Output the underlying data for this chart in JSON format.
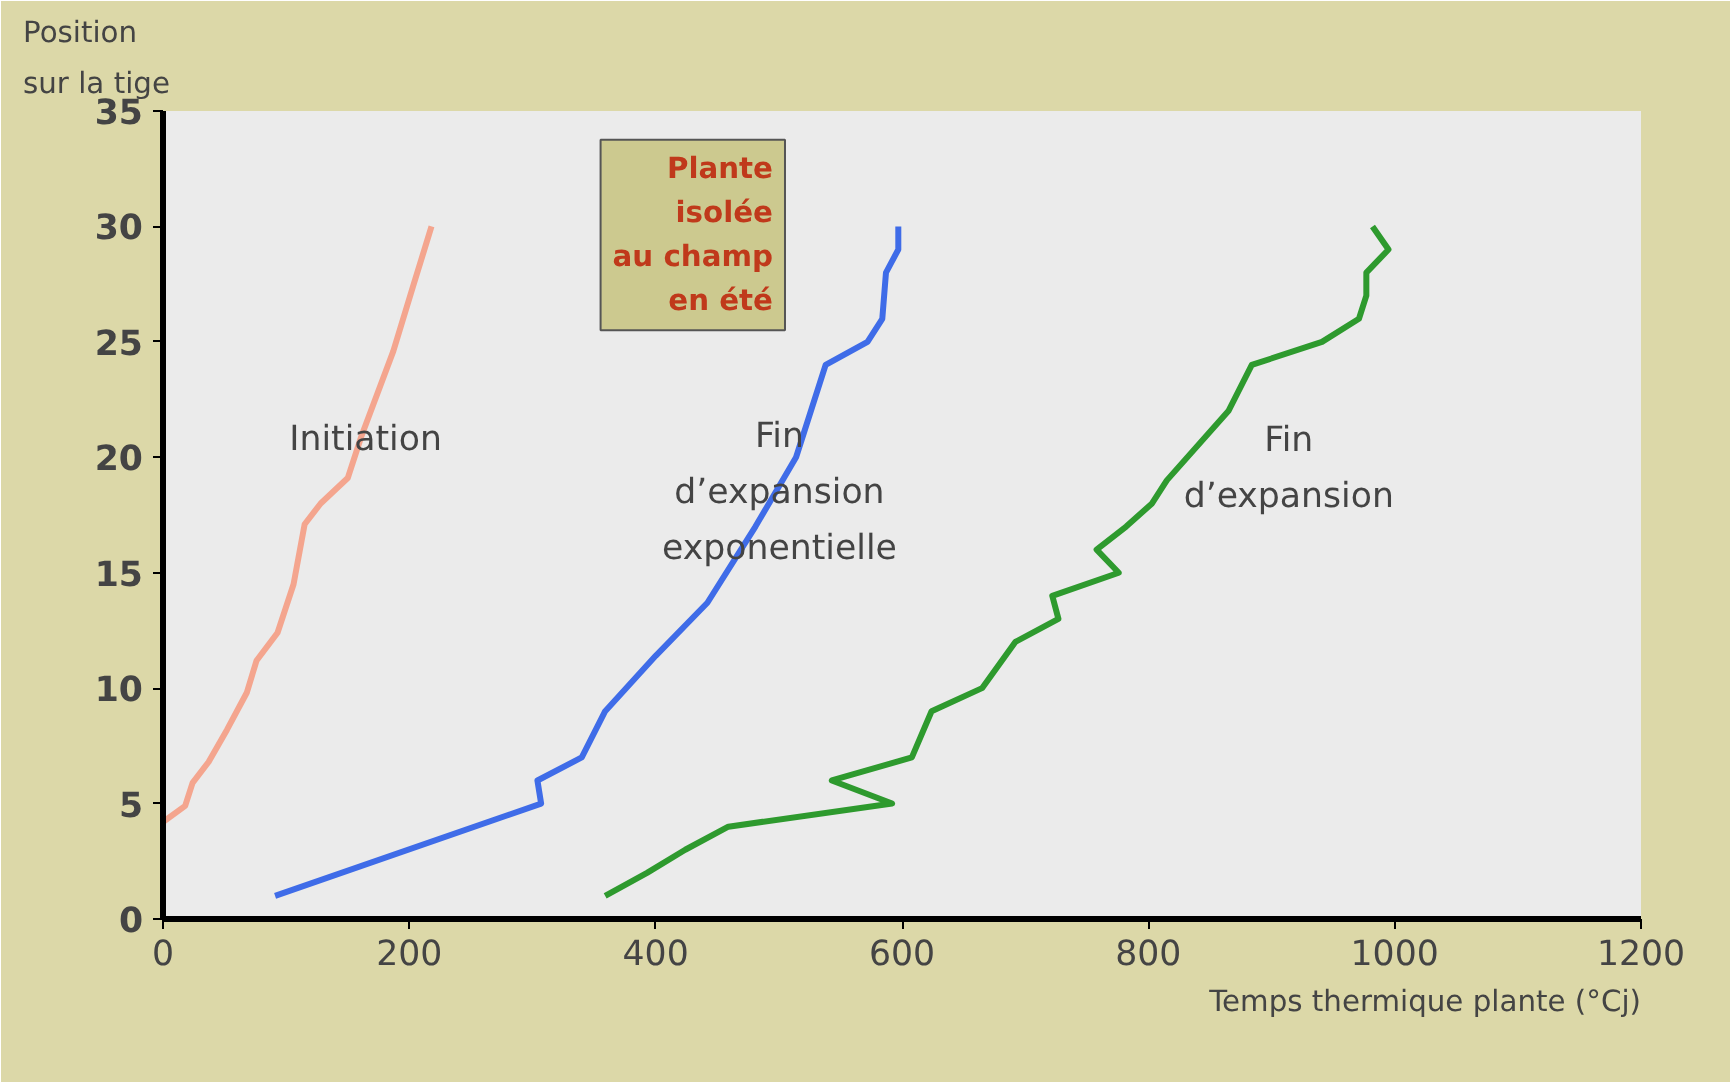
{
  "chart_data": {
    "type": "line",
    "xlabel": "Temps thermique plante (°Cj)",
    "ylabel": "Position\nsur la tige",
    "xlim": [
      0,
      1200
    ],
    "ylim": [
      0,
      35
    ],
    "xticks": [
      0,
      200,
      400,
      600,
      800,
      1000,
      1200
    ],
    "yticks": [
      0,
      5,
      10,
      15,
      20,
      25,
      30,
      35
    ],
    "grid": false,
    "marker": "none",
    "line_style": "solid",
    "annotations": [
      "Plante\nisolée\nau champ\nen été"
    ],
    "series": [
      {
        "name": "Initiation",
        "color": "#f4a58e",
        "x": [
          0,
          18,
          24,
          37,
          52,
          68,
          76,
          93,
          106,
          115,
          128,
          150,
          161,
          187,
          203,
          218
        ],
        "values": [
          4.2,
          4.9,
          5.9,
          6.8,
          8.2,
          9.8,
          11.2,
          12.4,
          14.5,
          17.1,
          18.0,
          19.1,
          20.9,
          24.6,
          27.4,
          30
        ]
      },
      {
        "name": "Fin\nd’expansion\nexponentielle",
        "color": "#3f6ce8",
        "x": [
          91,
          307,
          304,
          340,
          359,
          400,
          442,
          481,
          514,
          538,
          572,
          584,
          587,
          597,
          597
        ],
        "values": [
          1,
          5,
          6,
          7,
          9,
          11.4,
          13.7,
          17,
          20,
          24,
          25,
          26,
          28,
          29,
          30
        ]
      },
      {
        "name": "Fin\nd’expansion",
        "color": "#2e9a2e",
        "x": [
          359,
          393,
          424,
          459,
          592,
          543,
          608,
          624,
          665,
          692,
          727,
          722,
          776,
          758,
          782,
          803,
          815,
          865,
          884,
          941,
          971,
          977,
          977,
          995,
          982
        ],
        "values": [
          1,
          2,
          3,
          4,
          5,
          6,
          7,
          9,
          10,
          12,
          13,
          14,
          15,
          16,
          17,
          18,
          19,
          22,
          24,
          25,
          26,
          27,
          28,
          29,
          30
        ]
      }
    ]
  }
}
